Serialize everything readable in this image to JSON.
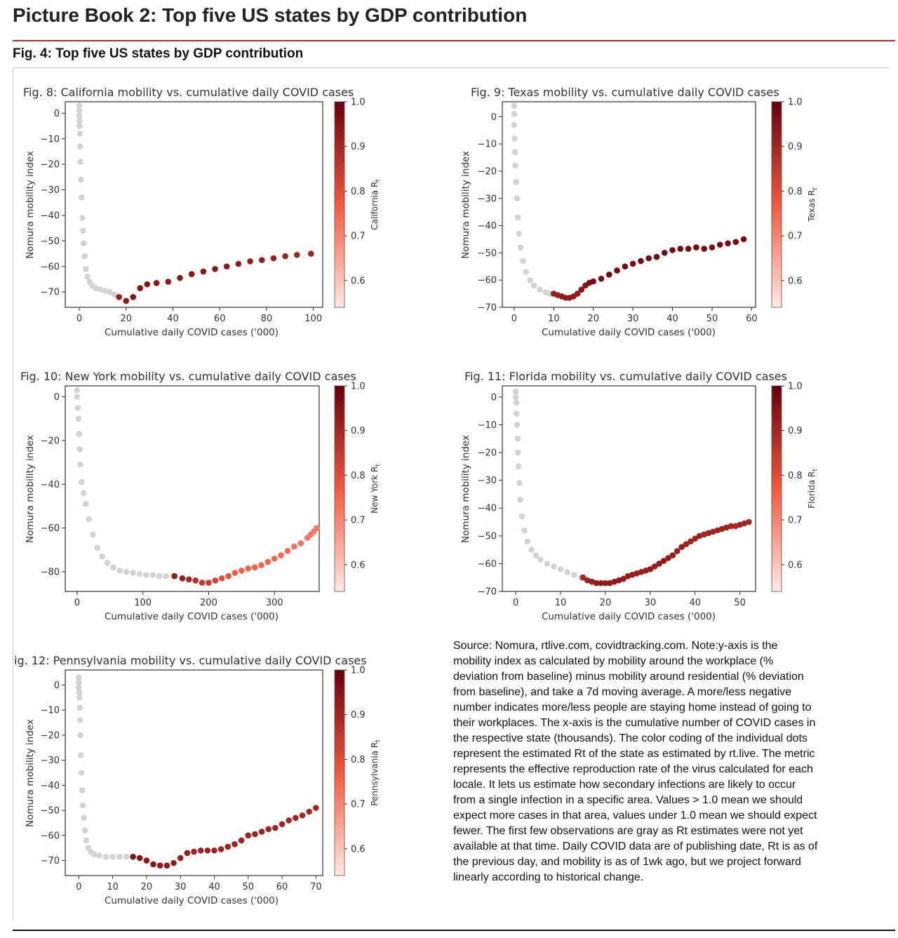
{
  "page": {
    "title": "Picture Book 2: Top five US states by GDP contribution",
    "figure_title": "Fig. 4: Top five US states by GDP contribution",
    "source_note": "Source: Nomura, rtlive.com, covidtracking.com. Note:y-axis is the mobility index as calculated by mobility around the workplace (% deviation from baseline) minus mobility around residential (% deviation from baseline), and take a 7d moving average. A more/less negative number indicates more/less people are staying home instead of going to their workplaces. The x-axis is the cumulative number of COVID cases in the respective state (thousands). The color coding of the individual dots represent the estimated Rt of the state as estimated by rt.live. The metric represents the effective reproduction rate of the virus calculated for each locale. It lets us estimate how secondary infections are likely to occur from a single infection in a specific area. Values > 1.0 mean we should expect more cases in that area, values under 1.0 mean we should expect fewer. The first few observations are gray as Rt estimates were not yet available at that time. Daily COVID data are of publishing date, Rt is as of the previous day, and mobility is as of 1wk ago, but we project forward linearly according to historical change."
  },
  "colors": {
    "accent_rule": "#c0282d",
    "gray_dot": "#d3d3d3",
    "cmap_low": "#fde9e4",
    "cmap_mid": "#f4573f",
    "cmap_high": "#67000d"
  },
  "chart_data": [
    {
      "type": "scatter",
      "title": "Fig. 8: California mobility vs. cumulative daily COVID cases",
      "xlabel": "Cumulative daily COVID cases ('000)",
      "ylabel": "Nomura mobility index",
      "colorbar_label": "California R",
      "colorbar_ticks": [
        "0.6",
        "0.7",
        "0.8",
        "0.9",
        "1.0"
      ],
      "x_ticks": [
        0,
        20,
        40,
        60,
        80,
        100
      ],
      "y_ticks": [
        0,
        -10,
        -20,
        -30,
        -40,
        -50,
        -60,
        -70
      ],
      "xlim": [
        -6,
        104
      ],
      "ylim": [
        -76,
        4.5
      ],
      "gray": [
        [
          0,
          3
        ],
        [
          0,
          1
        ],
        [
          0,
          -1
        ],
        [
          0.1,
          -3
        ],
        [
          0.1,
          -5
        ],
        [
          0.2,
          -8
        ],
        [
          0.3,
          -13
        ],
        [
          0.5,
          -19
        ],
        [
          0.7,
          -26
        ],
        [
          1,
          -33
        ],
        [
          1.3,
          -41
        ],
        [
          1.6,
          -46
        ],
        [
          1.9,
          -51
        ],
        [
          2.3,
          -56
        ],
        [
          2.8,
          -61
        ],
        [
          3.5,
          -64
        ],
        [
          4.5,
          -66
        ],
        [
          5.5,
          -67.5
        ],
        [
          7,
          -68.5
        ],
        [
          9,
          -69
        ],
        [
          11,
          -69.5
        ],
        [
          13,
          -70
        ],
        [
          15,
          -71
        ]
      ],
      "colored": [
        {
          "x": [
            17,
            20,
            23,
            26,
            29,
            33,
            38,
            43,
            48,
            53,
            58,
            63,
            68,
            73,
            78,
            83,
            88,
            93,
            99
          ],
          "y": [
            -72,
            -73.5,
            -72,
            -68.5,
            -67,
            -66.5,
            -66,
            -64.5,
            -63,
            -62,
            -61,
            -60,
            -59,
            -58,
            -57.5,
            -56.8,
            -56,
            -55.5,
            -55
          ],
          "rt": [
            0.92,
            0.93,
            0.95,
            0.95,
            0.95,
            0.94,
            0.94,
            0.94,
            0.94,
            0.94,
            0.94,
            0.93,
            0.93,
            0.92,
            0.92,
            0.92,
            0.91,
            0.91,
            0.91
          ]
        }
      ]
    },
    {
      "type": "scatter",
      "title": "Fig. 9: Texas mobility vs. cumulative daily COVID cases",
      "xlabel": "Cumulative daily COVID cases ('000)",
      "ylabel": "Nomura mobility index",
      "colorbar_label": "Texas R",
      "colorbar_ticks": [
        "0.6",
        "0.7",
        "0.8",
        "0.9",
        "1.0"
      ],
      "x_ticks": [
        0,
        10,
        20,
        30,
        40,
        50,
        60
      ],
      "y_ticks": [
        0,
        -10,
        -20,
        -30,
        -40,
        -50,
        -60,
        -70
      ],
      "xlim": [
        -3,
        61
      ],
      "ylim": [
        -70,
        5.5
      ],
      "gray": [
        [
          0,
          4
        ],
        [
          0,
          1
        ],
        [
          0,
          -3
        ],
        [
          0.1,
          -8
        ],
        [
          0.2,
          -13
        ],
        [
          0.3,
          -18
        ],
        [
          0.5,
          -24
        ],
        [
          0.7,
          -30
        ],
        [
          0.9,
          -37
        ],
        [
          1.2,
          -43
        ],
        [
          1.6,
          -48
        ],
        [
          2.2,
          -53
        ],
        [
          3,
          -57
        ],
        [
          4,
          -60
        ],
        [
          5,
          -62
        ],
        [
          6.5,
          -63.5
        ],
        [
          8,
          -64.5
        ],
        [
          9,
          -65
        ]
      ],
      "colored": [
        {
          "x": [
            10,
            11,
            12,
            13,
            14,
            15,
            16,
            17,
            18,
            19,
            20,
            22,
            24,
            26,
            28,
            30,
            32,
            34,
            36,
            38,
            40,
            42,
            44,
            46,
            48,
            50,
            52,
            54,
            56,
            58
          ],
          "y": [
            -65,
            -65.5,
            -66,
            -66.5,
            -66.5,
            -66,
            -65,
            -63.5,
            -62,
            -61,
            -60.5,
            -59.5,
            -58,
            -56.5,
            -55,
            -54,
            -53,
            -52,
            -51.5,
            -50,
            -49,
            -48.5,
            -48.5,
            -48,
            -48.5,
            -48,
            -47,
            -46.5,
            -46,
            -45
          ],
          "rt": [
            0.92,
            0.92,
            0.93,
            0.93,
            0.93,
            0.93,
            0.93,
            0.94,
            0.95,
            0.96,
            0.97,
            0.97,
            0.98,
            0.98,
            0.98,
            0.98,
            0.98,
            0.98,
            0.98,
            0.98,
            0.98,
            0.98,
            0.98,
            0.98,
            0.97,
            0.97,
            0.97,
            0.97,
            0.97,
            0.97
          ]
        }
      ]
    },
    {
      "type": "scatter",
      "title": "Fig. 10: New York mobility vs. cumulative daily COVID cases",
      "xlabel": "Cumulative daily COVID cases ('000)",
      "ylabel": "Nomura mobility index",
      "colorbar_label": "New York R",
      "colorbar_ticks": [
        "0.6",
        "0.7",
        "0.8",
        "0.9",
        "1.0"
      ],
      "x_ticks": [
        0,
        100,
        200,
        300
      ],
      "y_ticks": [
        0,
        -20,
        -40,
        -60,
        -80
      ],
      "xlim": [
        -18,
        368
      ],
      "ylim": [
        -89,
        5
      ],
      "gray": [
        [
          0,
          3
        ],
        [
          0,
          0
        ],
        [
          1,
          -5
        ],
        [
          2,
          -10
        ],
        [
          3,
          -17
        ],
        [
          4,
          -24
        ],
        [
          5,
          -31
        ],
        [
          7,
          -39
        ],
        [
          10,
          -44
        ],
        [
          13,
          -49
        ],
        [
          18,
          -56
        ],
        [
          24,
          -63
        ],
        [
          31,
          -69
        ],
        [
          38,
          -73
        ],
        [
          46,
          -76
        ],
        [
          55,
          -78
        ],
        [
          65,
          -79.5
        ],
        [
          75,
          -80
        ],
        [
          85,
          -80.5
        ],
        [
          95,
          -81
        ],
        [
          105,
          -81.5
        ],
        [
          115,
          -81.5
        ],
        [
          125,
          -82
        ],
        [
          135,
          -82
        ]
      ],
      "colored": [
        {
          "x": [
            148,
            160,
            170,
            180,
            190,
            200,
            210,
            220,
            230,
            240,
            250,
            260,
            270,
            280,
            290,
            300,
            310,
            320,
            330,
            340,
            350,
            355,
            360,
            364
          ],
          "y": [
            -82,
            -83,
            -83.5,
            -84,
            -85,
            -85,
            -84,
            -83,
            -82,
            -80.5,
            -79.5,
            -78.5,
            -78,
            -77,
            -75.5,
            -74,
            -72.5,
            -70.5,
            -68.5,
            -67,
            -64.5,
            -63,
            -61.5,
            -60
          ],
          "rt": [
            0.93,
            0.92,
            0.9,
            0.88,
            0.86,
            0.84,
            0.82,
            0.8,
            0.78,
            0.77,
            0.76,
            0.76,
            0.76,
            0.75,
            0.75,
            0.75,
            0.74,
            0.74,
            0.73,
            0.73,
            0.72,
            0.72,
            0.72,
            0.72
          ]
        }
      ]
    },
    {
      "type": "scatter",
      "title": "Fig. 11: Florida mobility vs. cumulative daily COVID cases",
      "xlabel": "Cumulative daily COVID cases ('000)",
      "ylabel": "Nomura mobility index",
      "colorbar_label": "Florida R",
      "colorbar_ticks": [
        "0.6",
        "0.7",
        "0.8",
        "0.9",
        "1.0"
      ],
      "x_ticks": [
        0,
        10,
        20,
        30,
        40,
        50
      ],
      "y_ticks": [
        0,
        -10,
        -20,
        -30,
        -40,
        -50,
        -60,
        -70
      ],
      "xlim": [
        -3,
        53.5
      ],
      "ylim": [
        -70,
        4
      ],
      "gray": [
        [
          0,
          2
        ],
        [
          0,
          0
        ],
        [
          0.1,
          -2
        ],
        [
          0.2,
          -6
        ],
        [
          0.3,
          -10
        ],
        [
          0.4,
          -15
        ],
        [
          0.5,
          -20
        ],
        [
          0.6,
          -25
        ],
        [
          0.8,
          -31
        ],
        [
          1,
          -37
        ],
        [
          1.4,
          -43
        ],
        [
          1.9,
          -48
        ],
        [
          2.6,
          -52
        ],
        [
          3.5,
          -55
        ],
        [
          4.5,
          -57
        ],
        [
          5.5,
          -58.5
        ],
        [
          7,
          -60
        ],
        [
          8.5,
          -61
        ],
        [
          10,
          -62
        ],
        [
          11.5,
          -63
        ],
        [
          13,
          -64
        ],
        [
          14.5,
          -65
        ]
      ],
      "colored": [
        {
          "x": [
            15,
            16,
            17,
            18,
            19,
            20,
            21,
            22,
            23,
            24,
            25,
            26,
            27,
            28,
            29,
            30,
            31,
            32,
            33,
            34,
            35,
            36,
            37,
            38,
            39,
            40,
            41,
            42,
            43,
            44,
            45,
            46,
            47,
            48,
            49,
            50,
            51,
            52
          ],
          "y": [
            -65,
            -66,
            -66.5,
            -67,
            -67,
            -67,
            -67,
            -66.5,
            -66,
            -65.5,
            -64.5,
            -64,
            -63.5,
            -63,
            -62.5,
            -62,
            -61,
            -60,
            -59,
            -58,
            -57,
            -55.5,
            -54,
            -53,
            -52,
            -51,
            -50,
            -49.5,
            -49,
            -48.5,
            -48,
            -47.5,
            -47,
            -46.5,
            -46.5,
            -46,
            -45.5,
            -45
          ],
          "rt": [
            0.9,
            0.91,
            0.92,
            0.93,
            0.93,
            0.93,
            0.93,
            0.93,
            0.93,
            0.92,
            0.92,
            0.92,
            0.92,
            0.92,
            0.92,
            0.92,
            0.92,
            0.92,
            0.92,
            0.92,
            0.92,
            0.92,
            0.92,
            0.91,
            0.91,
            0.91,
            0.91,
            0.91,
            0.91,
            0.91,
            0.91,
            0.91,
            0.91,
            0.9,
            0.9,
            0.9,
            0.9,
            0.9
          ]
        }
      ]
    },
    {
      "type": "scatter",
      "title": "ig. 12: Pennsylvania mobility vs. cumulative daily COVID cases",
      "xlabel": "Cumulative daily COVID cases ('000)",
      "ylabel": "Nomura mobility index",
      "colorbar_label": "Pennsylvania R",
      "colorbar_ticks": [
        "0.6",
        "0.7",
        "0.8",
        "0.9",
        "1.0"
      ],
      "x_ticks": [
        0,
        10,
        20,
        30,
        40,
        50,
        60,
        70
      ],
      "y_ticks": [
        0,
        -10,
        -20,
        -30,
        -40,
        -50,
        -60,
        -70
      ],
      "xlim": [
        -4,
        72
      ],
      "ylim": [
        -76,
        6
      ],
      "gray": [
        [
          0,
          3
        ],
        [
          0,
          1
        ],
        [
          0,
          -1
        ],
        [
          0.1,
          -3
        ],
        [
          0.2,
          -5
        ],
        [
          0.3,
          -9
        ],
        [
          0.4,
          -14
        ],
        [
          0.5,
          -20
        ],
        [
          0.6,
          -28
        ],
        [
          0.8,
          -35
        ],
        [
          1,
          -42
        ],
        [
          1.2,
          -48
        ],
        [
          1.5,
          -53
        ],
        [
          1.8,
          -58
        ],
        [
          2.2,
          -62
        ],
        [
          2.8,
          -65
        ],
        [
          3.5,
          -66.5
        ],
        [
          4.5,
          -67.5
        ],
        [
          6,
          -68
        ],
        [
          8,
          -68.5
        ],
        [
          10,
          -68.5
        ],
        [
          12,
          -68.5
        ],
        [
          14,
          -68.5
        ]
      ],
      "colored": [
        {
          "x": [
            16,
            18,
            20,
            22,
            24,
            26,
            28,
            30,
            32,
            34,
            36,
            38,
            40,
            42,
            44,
            46,
            48,
            50,
            52,
            54,
            56,
            58,
            60,
            62,
            64,
            66,
            68,
            70
          ],
          "y": [
            -68.5,
            -69,
            -70,
            -71.5,
            -72,
            -72,
            -71,
            -69,
            -67,
            -66.5,
            -66,
            -66,
            -66,
            -65.5,
            -64.5,
            -63.5,
            -62,
            -60,
            -59.5,
            -58.5,
            -57.5,
            -57,
            -55.5,
            -54,
            -53,
            -52,
            -50.5,
            -49
          ],
          "rt": [
            0.95,
            0.95,
            0.94,
            0.94,
            0.94,
            0.94,
            0.93,
            0.92,
            0.92,
            0.91,
            0.91,
            0.91,
            0.91,
            0.91,
            0.91,
            0.91,
            0.91,
            0.91,
            0.91,
            0.91,
            0.91,
            0.91,
            0.91,
            0.9,
            0.9,
            0.9,
            0.9,
            0.9
          ]
        }
      ]
    }
  ]
}
